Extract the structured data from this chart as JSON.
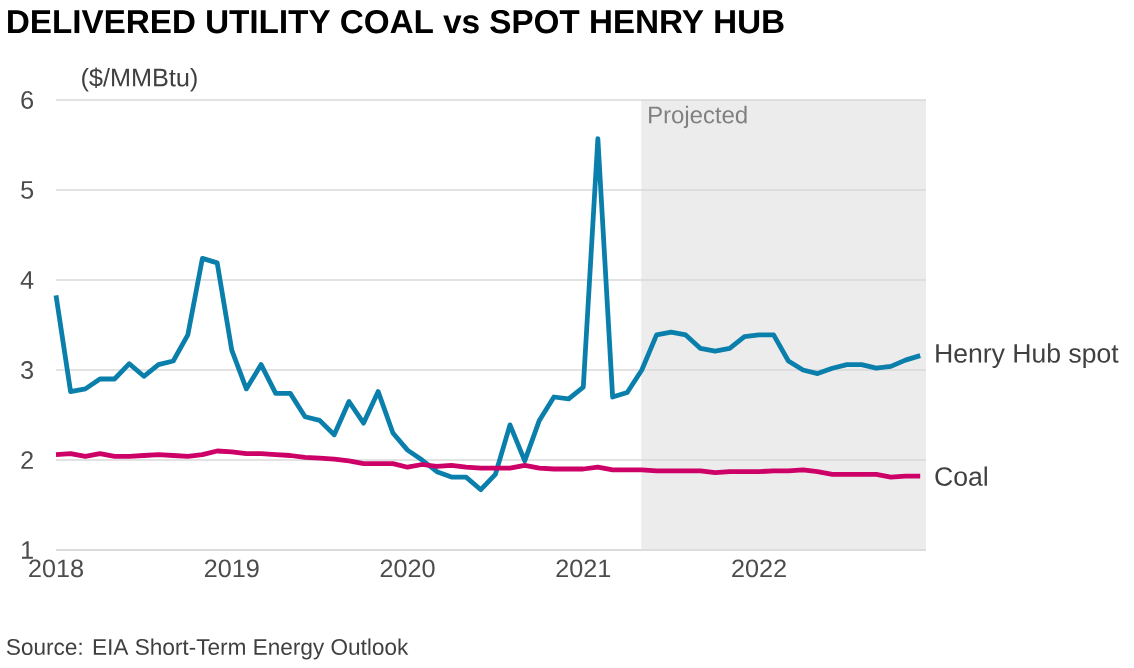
{
  "chart_data": {
    "type": "line",
    "title": "DELIVERED UTILITY COAL vs SPOT HENRY HUB",
    "ylabel": "($/MMBtu)",
    "annotations": [
      "Source: EIA Short-Term Energy Outlook"
    ],
    "x": [
      2018.0,
      2018.083,
      2018.167,
      2018.25,
      2018.333,
      2018.417,
      2018.5,
      2018.583,
      2018.667,
      2018.75,
      2018.833,
      2018.917,
      2019.0,
      2019.083,
      2019.167,
      2019.25,
      2019.333,
      2019.417,
      2019.5,
      2019.583,
      2019.667,
      2019.75,
      2019.833,
      2019.917,
      2020.0,
      2020.083,
      2020.167,
      2020.25,
      2020.333,
      2020.417,
      2020.5,
      2020.583,
      2020.667,
      2020.75,
      2020.833,
      2020.917,
      2021.0,
      2021.083,
      2021.167,
      2021.25,
      2021.333,
      2021.417,
      2021.5,
      2021.583,
      2021.667,
      2021.75,
      2021.833,
      2021.917,
      2022.0,
      2022.083,
      2022.167,
      2022.25,
      2022.333,
      2022.417,
      2022.5,
      2022.583,
      2022.667,
      2022.75,
      2022.833,
      2022.917
    ],
    "series": [
      {
        "name": "Henry Hub spot",
        "color": "#0a7fab",
        "values": [
          3.83,
          2.76,
          2.79,
          2.9,
          2.9,
          3.07,
          2.93,
          3.06,
          3.1,
          3.39,
          4.24,
          4.19,
          3.22,
          2.79,
          3.06,
          2.74,
          2.74,
          2.48,
          2.44,
          2.28,
          2.65,
          2.41,
          2.76,
          2.3,
          2.11,
          2.0,
          1.87,
          1.81,
          1.81,
          1.67,
          1.84,
          2.39,
          1.99,
          2.44,
          2.7,
          2.68,
          2.81,
          5.57,
          2.7,
          2.75,
          3.0,
          3.39,
          3.42,
          3.39,
          3.24,
          3.21,
          3.24,
          3.37,
          3.39,
          3.39,
          3.1,
          3.0,
          2.96,
          3.02,
          3.06,
          3.06,
          3.02,
          3.04,
          3.11,
          3.16
        ]
      },
      {
        "name": "Coal",
        "color": "#cc0066",
        "values": [
          2.06,
          2.07,
          2.04,
          2.07,
          2.04,
          2.04,
          2.05,
          2.06,
          2.05,
          2.04,
          2.06,
          2.1,
          2.09,
          2.07,
          2.07,
          2.06,
          2.05,
          2.03,
          2.02,
          2.01,
          1.99,
          1.96,
          1.96,
          1.96,
          1.92,
          1.95,
          1.93,
          1.94,
          1.92,
          1.91,
          1.91,
          1.91,
          1.94,
          1.91,
          1.9,
          1.9,
          1.9,
          1.92,
          1.89,
          1.89,
          1.89,
          1.88,
          1.88,
          1.88,
          1.88,
          1.86,
          1.87,
          1.87,
          1.87,
          1.88,
          1.88,
          1.89,
          1.87,
          1.84,
          1.84,
          1.84,
          1.84,
          1.81,
          1.82,
          1.82
        ]
      }
    ],
    "xlim": [
      2018,
      2022.95
    ],
    "ylim": [
      1,
      6
    ],
    "xticks": [
      2018,
      2019,
      2020,
      2021,
      2022
    ],
    "yticks": [
      1,
      2,
      3,
      4,
      5,
      6
    ],
    "grid": "y",
    "bands": [
      {
        "axis": "x",
        "from": 2021.33,
        "to": 2022.95,
        "label": "Projected",
        "color": "#ececec"
      }
    ]
  }
}
